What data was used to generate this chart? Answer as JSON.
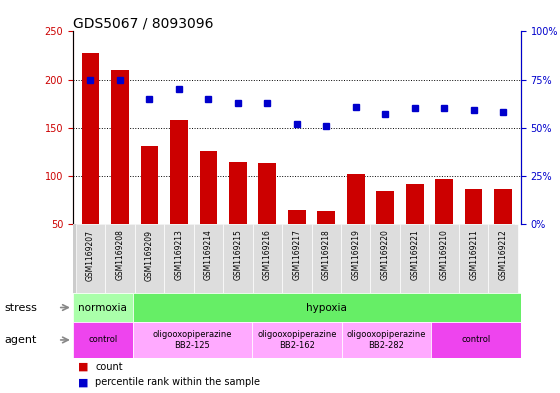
{
  "title": "GDS5067 / 8093096",
  "samples": [
    "GSM1169207",
    "GSM1169208",
    "GSM1169209",
    "GSM1169213",
    "GSM1169214",
    "GSM1169215",
    "GSM1169216",
    "GSM1169217",
    "GSM1169218",
    "GSM1169219",
    "GSM1169220",
    "GSM1169221",
    "GSM1169210",
    "GSM1169211",
    "GSM1169212"
  ],
  "counts": [
    228,
    210,
    131,
    158,
    126,
    114,
    113,
    65,
    64,
    102,
    84,
    92,
    97,
    86,
    86
  ],
  "percentiles": [
    75,
    75,
    65,
    70,
    65,
    63,
    63,
    52,
    51,
    61,
    57,
    60,
    60,
    59,
    58
  ],
  "ylim_left": [
    50,
    250
  ],
  "ylim_right": [
    0,
    100
  ],
  "yticks_left": [
    50,
    100,
    150,
    200,
    250
  ],
  "yticks_right": [
    0,
    25,
    50,
    75,
    100
  ],
  "bar_color": "#cc0000",
  "dot_color": "#0000cc",
  "stress_row": [
    {
      "label": "normoxia",
      "start": 0,
      "end": 2,
      "color": "#aaffaa"
    },
    {
      "label": "hypoxia",
      "start": 2,
      "end": 15,
      "color": "#66ee66"
    }
  ],
  "agent_row": [
    {
      "label": "control",
      "start": 0,
      "end": 2,
      "color": "#ee44ee"
    },
    {
      "label": "oligooxopiperazine\nBB2-125",
      "start": 2,
      "end": 6,
      "color": "#ffaaff"
    },
    {
      "label": "oligooxopiperazine\nBB2-162",
      "start": 6,
      "end": 9,
      "color": "#ffaaff"
    },
    {
      "label": "oligooxopiperazine\nBB2-282",
      "start": 9,
      "end": 12,
      "color": "#ffaaff"
    },
    {
      "label": "control",
      "start": 12,
      "end": 15,
      "color": "#ee44ee"
    }
  ],
  "tick_fontsize": 7,
  "title_fontsize": 10,
  "bar_width": 0.6,
  "n": 15
}
